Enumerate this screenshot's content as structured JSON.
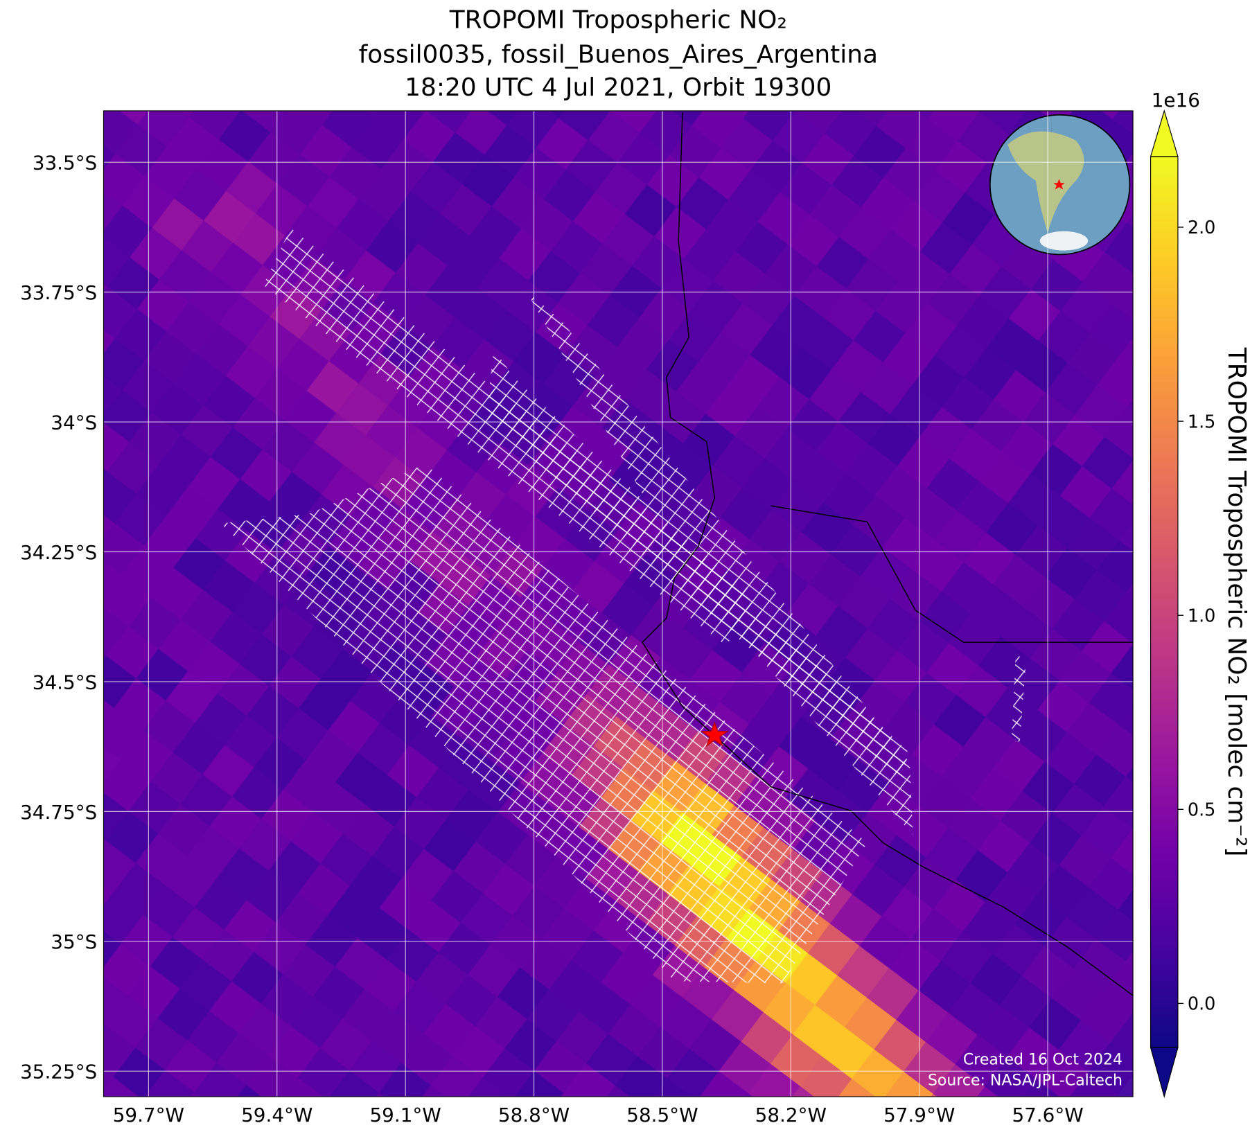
{
  "title_lines": [
    "TROPOMI Tropospheric NO₂",
    "fossil0035, fossil_Buenos_Aires_Argentina",
    "18:20 UTC 4 Jul 2021, Orbit 19300"
  ],
  "map": {
    "xlim": [
      -59.805,
      -57.401
    ],
    "ylim": [
      -35.299,
      -33.401
    ],
    "grid": true,
    "xticks": [
      {
        "value": -59.7,
        "label": "59.7°W"
      },
      {
        "value": -59.4,
        "label": "59.4°W"
      },
      {
        "value": -59.1,
        "label": "59.1°W"
      },
      {
        "value": -58.8,
        "label": "58.8°W"
      },
      {
        "value": -58.5,
        "label": "58.5°W"
      },
      {
        "value": -58.2,
        "label": "58.2°W"
      },
      {
        "value": -57.9,
        "label": "57.9°W"
      },
      {
        "value": -57.6,
        "label": "57.6°W"
      }
    ],
    "yticks": [
      {
        "value": -33.5,
        "label": "33.5°S"
      },
      {
        "value": -33.75,
        "label": "33.75°S"
      },
      {
        "value": -34,
        "label": "34°S"
      },
      {
        "value": -34.25,
        "label": "34.25°S"
      },
      {
        "value": -34.5,
        "label": "34.5°S"
      },
      {
        "value": -34.75,
        "label": "34.75°S"
      },
      {
        "value": -35,
        "label": "35°S"
      },
      {
        "value": -35.25,
        "label": "35.25°S"
      }
    ]
  },
  "colorbar": {
    "label": "TROPOMI Tropospheric NO₂ [molec cm⁻²]",
    "multiplier": "1e16",
    "lim": [
      -0.114,
      2.182
    ],
    "ticks": [
      {
        "value": 0,
        "label": "0.0"
      },
      0.5,
      {
        "value": 1,
        "label": "1.0"
      },
      1.5,
      {
        "value": 2,
        "label": "2.0"
      }
    ]
  },
  "footer": [
    "Created 16 Oct 2024",
    "Source: NASA/JPL-Caltech"
  ]
}
